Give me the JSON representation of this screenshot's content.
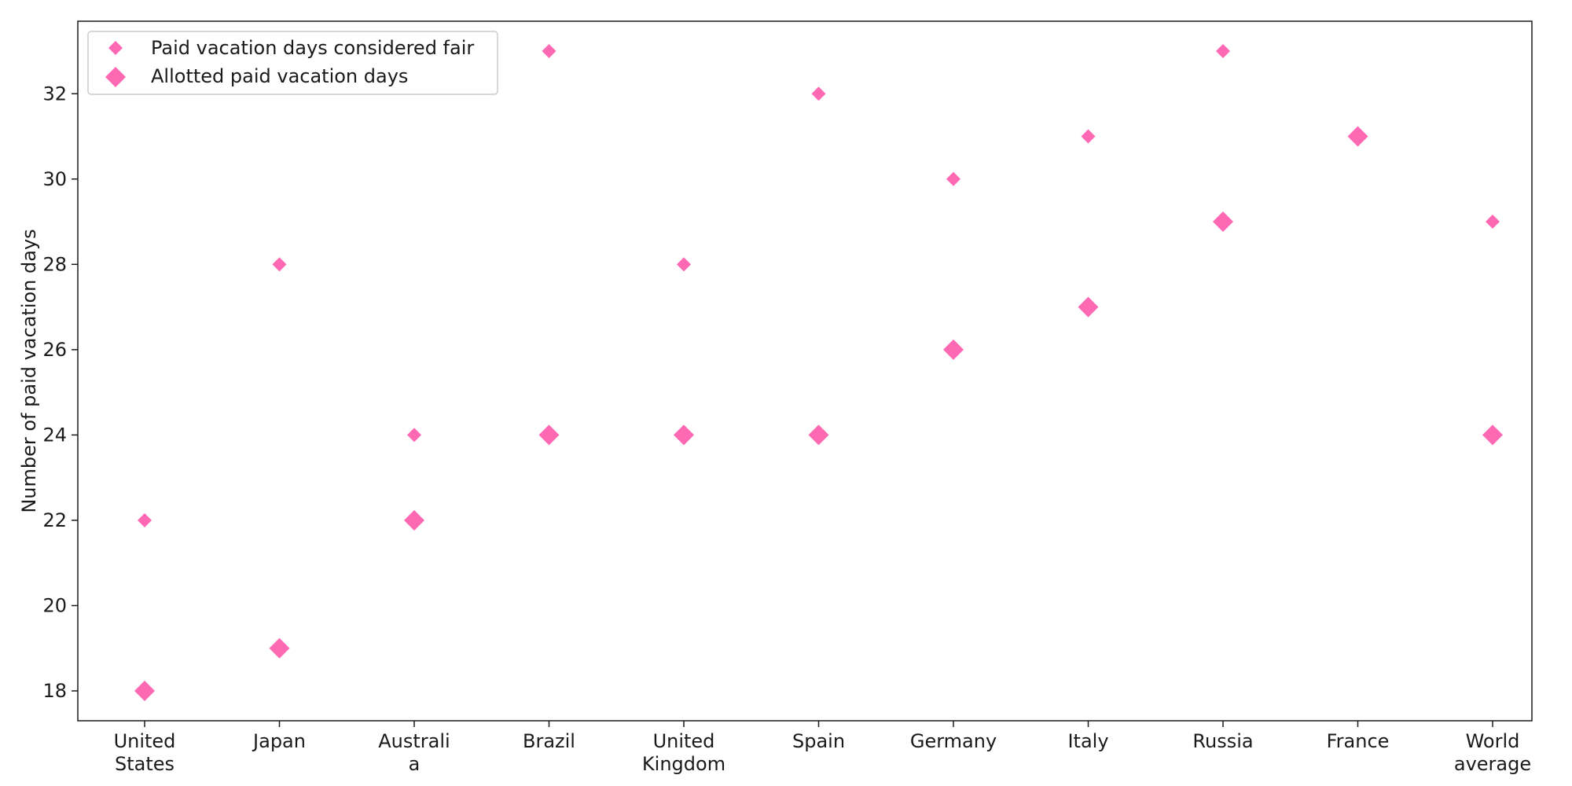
{
  "chart_data": {
    "type": "scatter",
    "categories": [
      [
        "United",
        "States"
      ],
      [
        "Japan"
      ],
      [
        "Australi",
        "a"
      ],
      [
        "Brazil"
      ],
      [
        "United",
        "Kingdom"
      ],
      [
        "Spain"
      ],
      [
        "Germany"
      ],
      [
        "Italy"
      ],
      [
        "Russia"
      ],
      [
        "France"
      ],
      [
        "World",
        "average"
      ]
    ],
    "series": [
      {
        "name": "Paid vacation days considered fair",
        "marker": "diamond-small",
        "values": [
          22,
          28,
          24,
          33,
          28,
          32,
          30,
          31,
          33,
          null,
          29
        ]
      },
      {
        "name": "Allotted paid vacation days",
        "marker": "diamond-large",
        "values": [
          18,
          19,
          22,
          24,
          24,
          24,
          26,
          27,
          29,
          31,
          24
        ]
      }
    ],
    "title": "",
    "xlabel": "",
    "ylabel": "Number of paid vacation days",
    "ylim": [
      17.3,
      33.7
    ],
    "yticks": [
      18,
      20,
      22,
      24,
      26,
      28,
      30,
      32
    ],
    "grid": false,
    "legend_position": "top-left",
    "colors": {
      "marker": "#ff69b4",
      "axis": "#1a1a1a"
    }
  }
}
